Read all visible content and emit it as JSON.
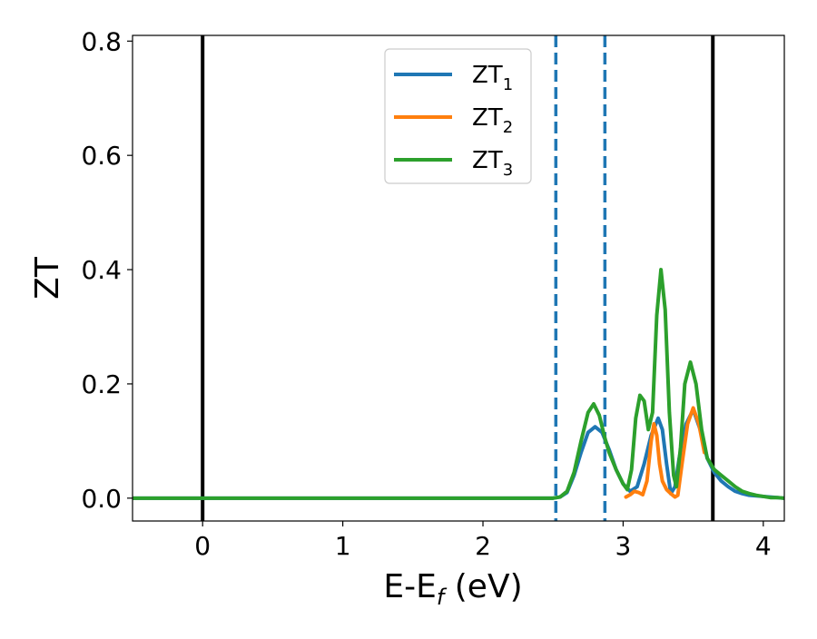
{
  "chart_data": {
    "type": "line",
    "xlabel": "E-E",
    "xlabel_subscript": "f",
    "xlabel_suffix": " (eV)",
    "ylabel": "ZT",
    "xlim": [
      -0.5,
      4.15
    ],
    "ylim": [
      -0.04,
      0.81
    ],
    "xticks": [
      0,
      1,
      2,
      3,
      4
    ],
    "xtick_labels": [
      "0",
      "1",
      "2",
      "3",
      "4"
    ],
    "yticks": [
      0.0,
      0.2,
      0.4,
      0.6,
      0.8
    ],
    "ytick_labels": [
      "0.0",
      "0.2",
      "0.4",
      "0.6",
      "0.8"
    ],
    "grid": false,
    "legend_position": "top-center",
    "vertical_lines": [
      {
        "x": 0.0,
        "style": "solid",
        "color": "#000000"
      },
      {
        "x": 3.64,
        "style": "solid",
        "color": "#000000"
      },
      {
        "x": 2.52,
        "style": "dashed",
        "color": "#1f77b4"
      },
      {
        "x": 2.87,
        "style": "dashed",
        "color": "#1f77b4"
      }
    ],
    "series": [
      {
        "name": "ZT",
        "subscript": "1",
        "color": "#1f77b4",
        "x": [
          -0.5,
          2.5,
          2.55,
          2.6,
          2.65,
          2.7,
          2.75,
          2.8,
          2.85,
          2.9,
          2.95,
          3.0,
          3.05,
          3.1,
          3.15,
          3.2,
          3.25,
          3.28,
          3.31,
          3.34,
          3.37,
          3.4,
          3.45,
          3.5,
          3.55,
          3.6,
          3.65,
          3.7,
          3.75,
          3.8,
          3.85,
          3.9,
          3.95,
          4.0,
          4.05,
          4.1,
          4.15
        ],
        "y": [
          0.0,
          0.0,
          0.002,
          0.01,
          0.04,
          0.08,
          0.115,
          0.125,
          0.115,
          0.085,
          0.05,
          0.025,
          0.012,
          0.02,
          0.06,
          0.11,
          0.14,
          0.12,
          0.06,
          0.008,
          0.02,
          0.07,
          0.13,
          0.155,
          0.12,
          0.07,
          0.045,
          0.03,
          0.02,
          0.012,
          0.008,
          0.005,
          0.004,
          0.003,
          0.002,
          0.001,
          0.0
        ]
      },
      {
        "name": "ZT",
        "subscript": "2",
        "color": "#ff7f0e",
        "x": [
          3.02,
          3.05,
          3.08,
          3.11,
          3.14,
          3.17,
          3.2,
          3.22,
          3.24,
          3.26,
          3.28,
          3.31,
          3.34,
          3.37,
          3.39,
          3.42,
          3.46,
          3.5,
          3.54,
          3.58
        ],
        "y": [
          0.002,
          0.006,
          0.012,
          0.01,
          0.006,
          0.03,
          0.1,
          0.13,
          0.11,
          0.06,
          0.03,
          0.015,
          0.008,
          0.002,
          0.005,
          0.06,
          0.13,
          0.158,
          0.13,
          0.08
        ]
      },
      {
        "name": "ZT",
        "subscript": "3",
        "color": "#2ca02c",
        "x": [
          -0.5,
          2.5,
          2.55,
          2.6,
          2.65,
          2.7,
          2.75,
          2.79,
          2.83,
          2.87,
          2.9,
          2.95,
          3.0,
          3.03,
          3.06,
          3.09,
          3.12,
          3.15,
          3.18,
          3.21,
          3.24,
          3.27,
          3.3,
          3.33,
          3.36,
          3.38,
          3.41,
          3.44,
          3.48,
          3.52,
          3.56,
          3.6,
          3.65,
          3.7,
          3.75,
          3.8,
          3.85,
          3.9,
          3.95,
          4.0,
          4.05,
          4.1,
          4.15
        ],
        "y": [
          0.0,
          0.0,
          0.002,
          0.012,
          0.045,
          0.1,
          0.15,
          0.165,
          0.145,
          0.105,
          0.08,
          0.05,
          0.025,
          0.015,
          0.05,
          0.14,
          0.18,
          0.17,
          0.12,
          0.15,
          0.32,
          0.4,
          0.33,
          0.15,
          0.04,
          0.02,
          0.09,
          0.2,
          0.238,
          0.2,
          0.12,
          0.07,
          0.05,
          0.04,
          0.03,
          0.02,
          0.012,
          0.008,
          0.005,
          0.003,
          0.001,
          0.001,
          0.0
        ]
      }
    ]
  }
}
